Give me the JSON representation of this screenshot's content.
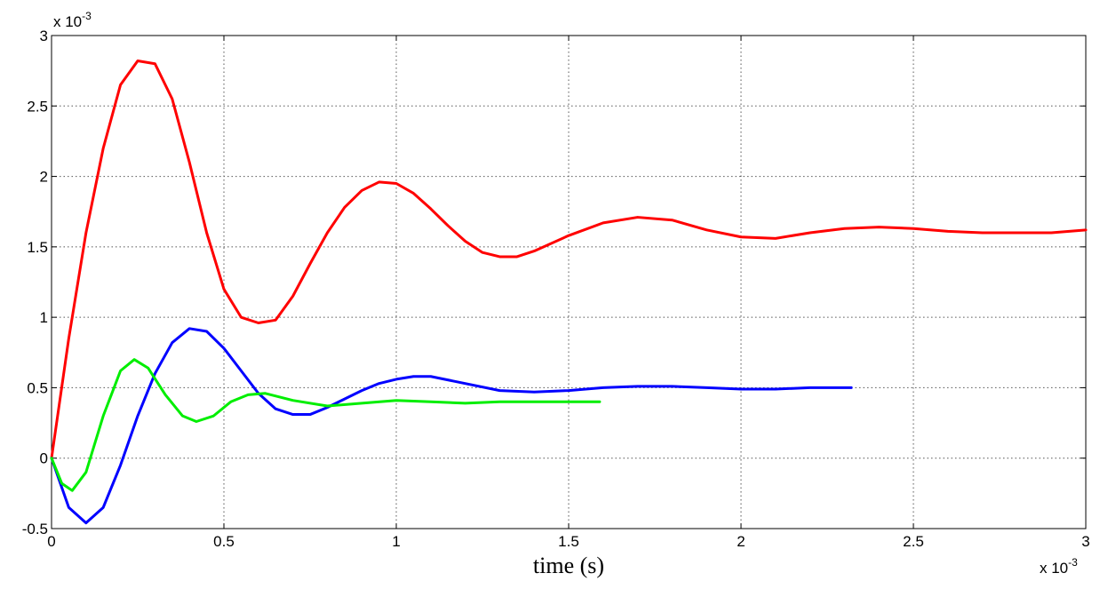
{
  "chart_data": {
    "type": "line",
    "xlabel": "time (s)",
    "x_multiplier": "x 10",
    "x_multiplier_exponent": "-3",
    "y_multiplier": "x 10",
    "y_multiplier_exponent": "-3",
    "xlim": [
      0,
      3
    ],
    "ylim": [
      -0.5,
      3
    ],
    "xticks": [
      0,
      0.5,
      1,
      1.5,
      2,
      2.5,
      3
    ],
    "yticks": [
      -0.5,
      0,
      0.5,
      1,
      1.5,
      2,
      2.5,
      3
    ],
    "grid": true,
    "series": [
      {
        "color": "#ff0000",
        "x": [
          0,
          0.05,
          0.1,
          0.15,
          0.2,
          0.25,
          0.3,
          0.35,
          0.4,
          0.45,
          0.5,
          0.55,
          0.6,
          0.65,
          0.7,
          0.75,
          0.8,
          0.85,
          0.9,
          0.95,
          1.0,
          1.05,
          1.1,
          1.15,
          1.2,
          1.25,
          1.3,
          1.35,
          1.4,
          1.5,
          1.6,
          1.7,
          1.8,
          1.9,
          2.0,
          2.1,
          2.2,
          2.3,
          2.4,
          2.5,
          2.6,
          2.7,
          2.8,
          2.9,
          3.0
        ],
        "values": [
          0,
          0.85,
          1.6,
          2.2,
          2.65,
          2.82,
          2.8,
          2.55,
          2.1,
          1.6,
          1.2,
          1.0,
          0.96,
          0.98,
          1.15,
          1.38,
          1.6,
          1.78,
          1.9,
          1.96,
          1.95,
          1.88,
          1.77,
          1.65,
          1.54,
          1.46,
          1.43,
          1.43,
          1.47,
          1.58,
          1.67,
          1.71,
          1.69,
          1.62,
          1.57,
          1.56,
          1.6,
          1.63,
          1.64,
          1.63,
          1.61,
          1.6,
          1.6,
          1.6,
          1.62
        ]
      },
      {
        "color": "#0000ff",
        "x": [
          0,
          0.05,
          0.1,
          0.15,
          0.2,
          0.25,
          0.3,
          0.35,
          0.4,
          0.45,
          0.5,
          0.55,
          0.6,
          0.65,
          0.7,
          0.75,
          0.8,
          0.85,
          0.9,
          0.95,
          1.0,
          1.05,
          1.1,
          1.2,
          1.3,
          1.4,
          1.5,
          1.6,
          1.7,
          1.8,
          1.9,
          2.0,
          2.1,
          2.2,
          2.32
        ],
        "values": [
          0,
          -0.35,
          -0.46,
          -0.35,
          -0.05,
          0.3,
          0.6,
          0.82,
          0.92,
          0.9,
          0.78,
          0.62,
          0.46,
          0.35,
          0.31,
          0.31,
          0.36,
          0.42,
          0.48,
          0.53,
          0.56,
          0.58,
          0.58,
          0.53,
          0.48,
          0.47,
          0.48,
          0.5,
          0.51,
          0.51,
          0.5,
          0.49,
          0.49,
          0.5,
          0.5
        ]
      },
      {
        "color": "#00ee00",
        "x": [
          0,
          0.03,
          0.06,
          0.1,
          0.15,
          0.2,
          0.24,
          0.28,
          0.33,
          0.38,
          0.42,
          0.47,
          0.52,
          0.57,
          0.62,
          0.7,
          0.8,
          0.9,
          1.0,
          1.1,
          1.2,
          1.3,
          1.4,
          1.5,
          1.59
        ],
        "values": [
          0,
          -0.18,
          -0.23,
          -0.1,
          0.3,
          0.62,
          0.7,
          0.64,
          0.45,
          0.3,
          0.26,
          0.3,
          0.4,
          0.45,
          0.46,
          0.41,
          0.37,
          0.39,
          0.41,
          0.4,
          0.39,
          0.4,
          0.4,
          0.4,
          0.4
        ]
      }
    ]
  }
}
